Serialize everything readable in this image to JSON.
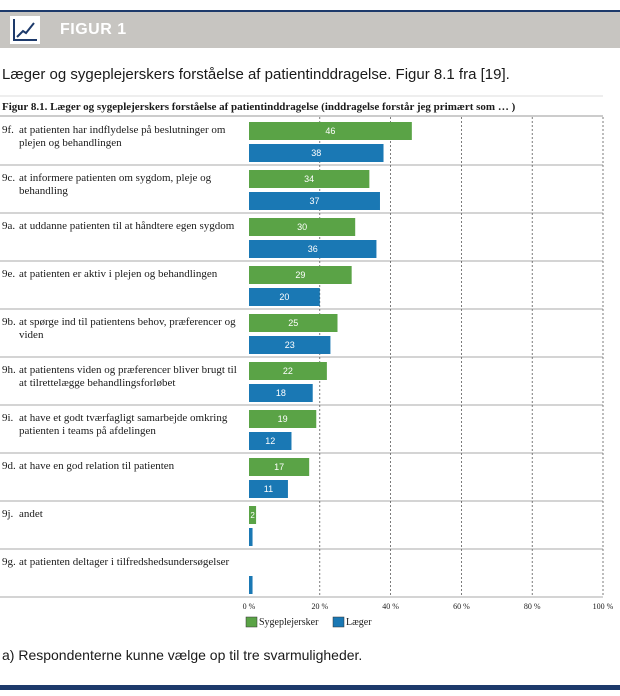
{
  "banner": {
    "title": "FIGUR 1"
  },
  "caption": "Læger og sygeplejerskers forståelse af patientinddragelse. Figur 8.1 fra [19].",
  "footnote": "a) Respondenterne kunne vælge op til tre svarmuligheder.",
  "chart_data": {
    "type": "bar",
    "orientation": "horizontal",
    "title": "Figur 8.1. Læger og sygeplejerskers forståelse af patientinddragelse (inddragelse forstår jeg primært som … )",
    "categories": [
      {
        "code": "9f.",
        "label": "at patienten har indflydelse på beslutninger om plejen og behandlingen"
      },
      {
        "code": "9c.",
        "label": "at informere patienten om sygdom, pleje og behandling"
      },
      {
        "code": "9a.",
        "label": "at uddanne patienten til at håndtere egen sygdom"
      },
      {
        "code": "9e.",
        "label": "at patienten er aktiv i plejen og behandlingen"
      },
      {
        "code": "9b.",
        "label": "at spørge ind til patientens behov, præferencer og viden"
      },
      {
        "code": "9h.",
        "label": "at patientens viden og præferencer bliver brugt til at tilrettelægge behandlingsforløbet"
      },
      {
        "code": "9i.",
        "label": "at have et godt tværfagligt samarbejde omkring patienten i teams på afdelingen"
      },
      {
        "code": "9d.",
        "label": "at have en god relation til patienten"
      },
      {
        "code": "9j.",
        "label": "andet"
      },
      {
        "code": "9g.",
        "label": "at patienten deltager i tilfredshedsundersøgelser"
      }
    ],
    "series": [
      {
        "name": "Sygeplejersker",
        "color": "#5aa346",
        "values": [
          46,
          34,
          30,
          29,
          25,
          22,
          19,
          17,
          2,
          0
        ]
      },
      {
        "name": "Læger",
        "color": "#1a78b4",
        "values": [
          38,
          37,
          36,
          20,
          23,
          18,
          12,
          11,
          1,
          1
        ]
      }
    ],
    "show_value_labels": [
      [
        true,
        true,
        true,
        true,
        true,
        true,
        true,
        true,
        true,
        false
      ],
      [
        true,
        true,
        true,
        true,
        true,
        true,
        true,
        true,
        false,
        false
      ]
    ],
    "xlim": [
      0,
      100
    ],
    "x_ticks": [
      "0 %",
      "20 %",
      "40 %",
      "60 %",
      "80 %",
      "100 %"
    ],
    "grid": "vertical dashed",
    "legend_position": "bottom"
  }
}
